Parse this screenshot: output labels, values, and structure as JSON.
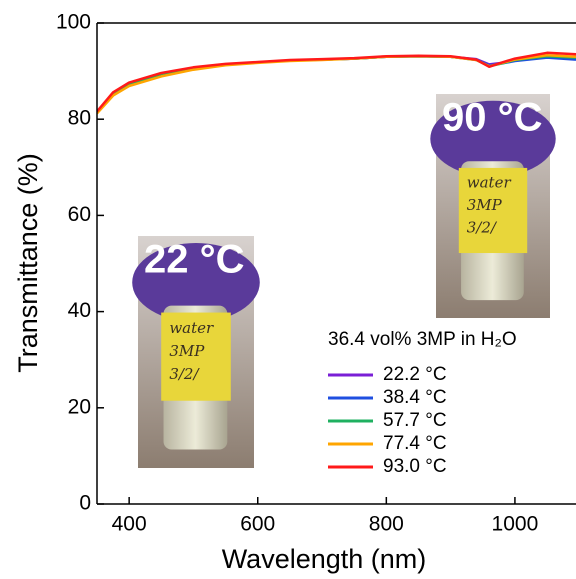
{
  "chart_data": {
    "type": "line",
    "xlabel": "Wavelength (nm)",
    "ylabel": "Transmittance (%)",
    "x": [
      350,
      375,
      400,
      450,
      500,
      550,
      600,
      650,
      700,
      750,
      800,
      850,
      900,
      940,
      960,
      980,
      1000,
      1050,
      1095
    ],
    "series": [
      {
        "name": "22.2 °C",
        "color": "#7a1fd6",
        "values": [
          81.5,
          85.4,
          87.4,
          89.5,
          90.7,
          91.4,
          91.8,
          92.2,
          92.4,
          92.6,
          93.0,
          93.1,
          93.0,
          92.5,
          91.4,
          91.7,
          92.2,
          92.9,
          92.5
        ]
      },
      {
        "name": "38.4 °C",
        "color": "#1f4fe0",
        "values": [
          81.5,
          85.4,
          87.4,
          89.5,
          90.7,
          91.4,
          91.8,
          92.2,
          92.4,
          92.6,
          93.0,
          93.1,
          93.0,
          92.4,
          91.2,
          91.6,
          92.1,
          92.8,
          92.4
        ]
      },
      {
        "name": "57.7 °C",
        "color": "#1fb060",
        "values": [
          81.4,
          85.3,
          87.3,
          89.4,
          90.6,
          91.3,
          91.8,
          92.2,
          92.4,
          92.6,
          93.0,
          93.1,
          93.0,
          92.3,
          91.0,
          91.6,
          92.3,
          93.1,
          92.8
        ]
      },
      {
        "name": "77.4 °C",
        "color": "#ffa500",
        "values": [
          81.2,
          84.9,
          86.9,
          88.9,
          90.3,
          91.2,
          91.7,
          92.1,
          92.3,
          92.6,
          93.0,
          93.1,
          93.0,
          92.3,
          91.0,
          91.7,
          92.4,
          93.3,
          93.0
        ]
      },
      {
        "name": "93.0 °C",
        "color": "#ff1a1a",
        "values": [
          81.6,
          85.6,
          87.6,
          89.6,
          90.8,
          91.5,
          91.9,
          92.3,
          92.5,
          92.7,
          93.1,
          93.2,
          93.1,
          92.4,
          90.9,
          91.8,
          92.6,
          93.8,
          93.5
        ]
      }
    ],
    "xlim": [
      350,
      1095
    ],
    "ylim": [
      0,
      100
    ],
    "xticks": [
      400,
      600,
      800,
      1000
    ],
    "yticks": [
      0,
      20,
      40,
      60,
      80,
      100
    ],
    "legend_title": "36.4 vol% 3MP in H₂O",
    "legend_loc": "lower right",
    "photos": [
      {
        "label": "22 °C",
        "notes": [
          "water",
          "3MP",
          "3/2/"
        ]
      },
      {
        "label": "90 °C",
        "notes": [
          "water",
          "3MP",
          "3/2/"
        ]
      }
    ]
  }
}
